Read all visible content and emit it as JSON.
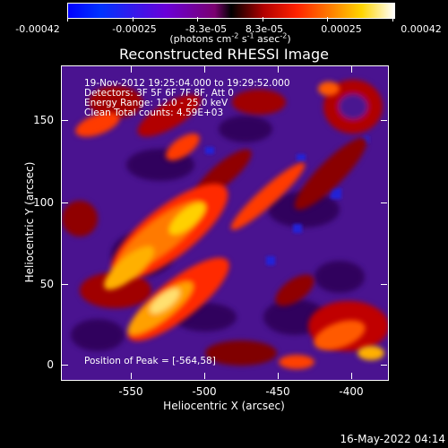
{
  "colorbar": {
    "tick_labels": [
      "-0.00042",
      "-0.00025",
      "-8.3e-05",
      "8.3e-05",
      "0.00025",
      "0.00042"
    ],
    "unit_prefix": "(photons cm",
    "unit_exp1": "-2",
    "unit_mid1": " s",
    "unit_exp2": "-1",
    "unit_mid2": " asec",
    "unit_exp3": "-2",
    "unit_suffix": ")"
  },
  "title": "Reconstructed RHESSI Image",
  "info": {
    "line1": "19-Nov-2012 19:25:04.000 to 19:29:52.000",
    "line2": "Detectors: 3F 5F 6F 7F 8F, Att 0",
    "line3": "Energy Range: 12.0 - 25.0 keV",
    "line4": "Clean     Total counts: 4.59E+03"
  },
  "peak": "Position of Peak = [-564,58]",
  "axes": {
    "x_label": "Heliocentric X (arcsec)",
    "y_label": "Heliocentric Y (arcsec)",
    "x_ticks": [
      "-550",
      "-500",
      "-450",
      "-400"
    ],
    "y_ticks": [
      "0",
      "50",
      "100",
      "150"
    ]
  },
  "timestamp": "16-May-2022 04:14",
  "colors": {
    "background": "#000000",
    "text": "#ffffff",
    "low": "#0000ff",
    "mid_low": "#6a00d8",
    "zero": "#000000",
    "mid_high": "#ff2200",
    "high": "#ffd500",
    "max": "#ffffff"
  }
}
